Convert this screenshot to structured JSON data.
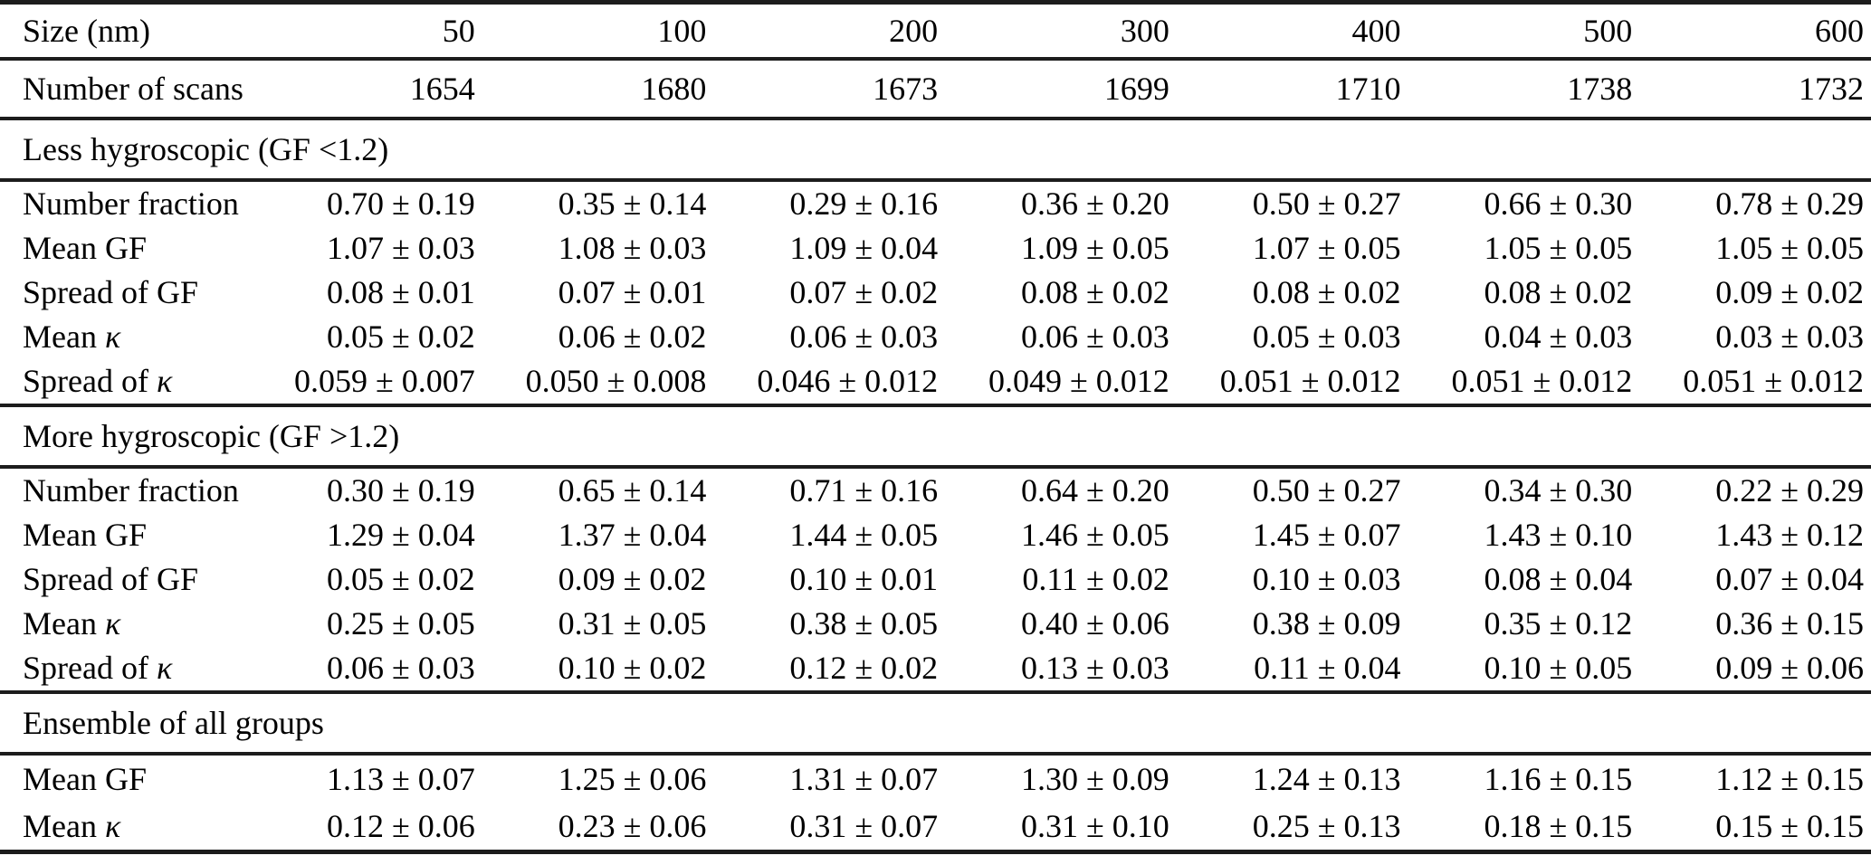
{
  "table": {
    "header": {
      "label": "Size (nm)",
      "columns": [
        "50",
        "100",
        "200",
        "300",
        "400",
        "500",
        "600"
      ]
    },
    "scans": {
      "label": "Number of scans",
      "values": [
        "1654",
        "1680",
        "1673",
        "1699",
        "1710",
        "1738",
        "1732"
      ]
    },
    "sections": [
      {
        "title": "Less hygroscopic (GF <1.2)",
        "rows": [
          {
            "label": "Number fraction",
            "kappa": "",
            "values": [
              "0.70 ± 0.19",
              "0.35 ± 0.14",
              "0.29 ± 0.16",
              "0.36 ± 0.20",
              "0.50 ± 0.27",
              "0.66 ± 0.30",
              "0.78 ± 0.29"
            ]
          },
          {
            "label": "Mean GF",
            "kappa": "",
            "values": [
              "1.07 ± 0.03",
              "1.08 ± 0.03",
              "1.09 ± 0.04",
              "1.09 ± 0.05",
              "1.07 ± 0.05",
              "1.05 ± 0.05",
              "1.05 ± 0.05"
            ]
          },
          {
            "label": "Spread of GF",
            "kappa": "",
            "values": [
              "0.08 ± 0.01",
              "0.07 ± 0.01",
              "0.07 ± 0.02",
              "0.08 ± 0.02",
              "0.08 ± 0.02",
              "0.08 ± 0.02",
              "0.09 ± 0.02"
            ]
          },
          {
            "label": "Mean ",
            "kappa": "κ",
            "values": [
              "0.05 ± 0.02",
              "0.06 ± 0.02",
              "0.06 ± 0.03",
              "0.06 ± 0.03",
              "0.05 ± 0.03",
              "0.04 ± 0.03",
              "0.03 ± 0.03"
            ]
          },
          {
            "label": "Spread of ",
            "kappa": "κ",
            "values": [
              "0.059 ± 0.007",
              "0.050 ± 0.008",
              "0.046 ± 0.012",
              "0.049 ± 0.012",
              "0.051 ± 0.012",
              "0.051 ± 0.012",
              "0.051 ± 0.012"
            ]
          }
        ]
      },
      {
        "title": "More hygroscopic (GF >1.2)",
        "rows": [
          {
            "label": "Number fraction",
            "kappa": "",
            "values": [
              "0.30 ± 0.19",
              "0.65 ± 0.14",
              "0.71 ± 0.16",
              "0.64 ± 0.20",
              "0.50 ± 0.27",
              "0.34 ± 0.30",
              "0.22 ± 0.29"
            ]
          },
          {
            "label": "Mean GF",
            "kappa": "",
            "values": [
              "1.29 ± 0.04",
              "1.37 ± 0.04",
              "1.44 ± 0.05",
              "1.46 ± 0.05",
              "1.45 ± 0.07",
              "1.43 ± 0.10",
              "1.43 ± 0.12"
            ]
          },
          {
            "label": "Spread of GF",
            "kappa": "",
            "values": [
              "0.05 ± 0.02",
              "0.09 ± 0.02",
              "0.10 ± 0.01",
              "0.11 ± 0.02",
              "0.10 ± 0.03",
              "0.08 ± 0.04",
              "0.07 ± 0.04"
            ]
          },
          {
            "label": "Mean ",
            "kappa": "κ",
            "values": [
              "0.25 ± 0.05",
              "0.31 ± 0.05",
              "0.38 ± 0.05",
              "0.40 ± 0.06",
              "0.38 ± 0.09",
              "0.35 ± 0.12",
              "0.36 ± 0.15"
            ]
          },
          {
            "label": "Spread of ",
            "kappa": "κ",
            "values": [
              "0.06 ± 0.03",
              "0.10 ± 0.02",
              "0.12 ± 0.02",
              "0.13 ± 0.03",
              "0.11 ± 0.04",
              "0.10 ± 0.05",
              "0.09 ± 0.06"
            ]
          }
        ]
      },
      {
        "title": "Ensemble of all groups",
        "rows": [
          {
            "label": "Mean GF",
            "kappa": "",
            "values": [
              "1.13 ± 0.07",
              "1.25 ± 0.06",
              "1.31 ± 0.07",
              "1.30 ± 0.09",
              "1.24 ± 0.13",
              "1.16 ± 0.15",
              "1.12 ± 0.15"
            ]
          },
          {
            "label": "Mean ",
            "kappa": "κ",
            "values": [
              "0.12 ± 0.06",
              "0.23 ± 0.06",
              "0.31 ± 0.07",
              "0.31 ± 0.10",
              "0.25 ± 0.13",
              "0.18 ± 0.15",
              "0.15 ± 0.15"
            ]
          }
        ]
      }
    ]
  }
}
